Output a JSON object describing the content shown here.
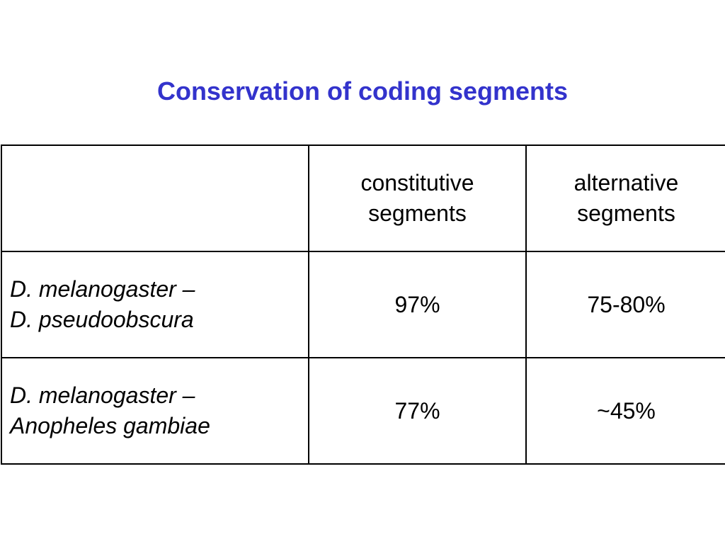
{
  "slide": {
    "title": "Conservation of coding segments"
  },
  "table": {
    "header": {
      "blank": "",
      "constitutive": [
        "constitutive",
        "segments"
      ],
      "alternative": [
        "alternative",
        "segments"
      ]
    },
    "rows": [
      {
        "species_pair": [
          "D. melanogaster –",
          "D. pseudoobscura"
        ],
        "constitutive": "97%",
        "alternative": "75-80%"
      },
      {
        "species_pair": [
          "D. melanogaster –",
          "Anopheles gambiae"
        ],
        "constitutive": "77%",
        "alternative": "~45%"
      }
    ]
  }
}
